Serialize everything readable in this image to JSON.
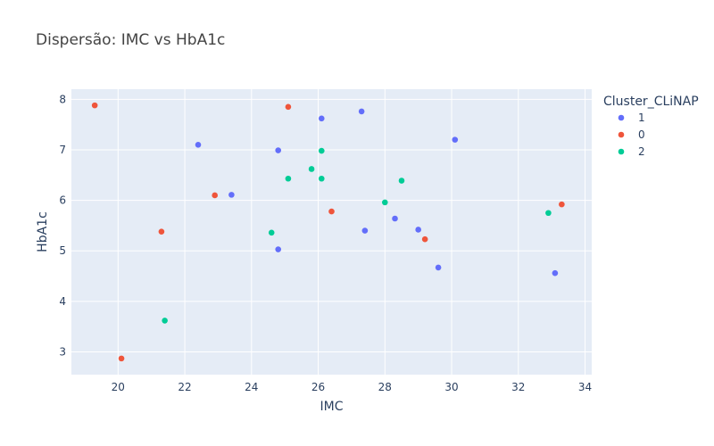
{
  "chart_data": {
    "type": "scatter",
    "title": "Dispersão: IMC vs HbA1c",
    "xlabel": "IMC",
    "ylabel": "HbA1c",
    "xlim": [
      18.6,
      34.2
    ],
    "ylim": [
      2.55,
      8.2
    ],
    "x_ticks": [
      20,
      22,
      24,
      26,
      28,
      30,
      32,
      34
    ],
    "y_ticks": [
      3,
      4,
      5,
      6,
      7,
      8
    ],
    "grid": true,
    "plot_background": "#E5ECF6",
    "legend": {
      "title": "Cluster_CLiNAP",
      "placement": "top-right"
    },
    "series": [
      {
        "name": "1",
        "color": "#636EFA",
        "points": [
          {
            "x": 22.4,
            "y": 7.1
          },
          {
            "x": 23.4,
            "y": 6.11
          },
          {
            "x": 24.8,
            "y": 6.99
          },
          {
            "x": 24.8,
            "y": 5.03
          },
          {
            "x": 26.1,
            "y": 7.62
          },
          {
            "x": 27.3,
            "y": 7.76
          },
          {
            "x": 27.4,
            "y": 5.4
          },
          {
            "x": 28.3,
            "y": 5.64
          },
          {
            "x": 29.0,
            "y": 5.42
          },
          {
            "x": 29.6,
            "y": 4.67
          },
          {
            "x": 30.1,
            "y": 7.2
          },
          {
            "x": 33.1,
            "y": 4.56
          }
        ]
      },
      {
        "name": "0",
        "color": "#EF553B",
        "points": [
          {
            "x": 19.3,
            "y": 7.88
          },
          {
            "x": 20.1,
            "y": 2.87
          },
          {
            "x": 21.3,
            "y": 5.38
          },
          {
            "x": 22.9,
            "y": 6.1
          },
          {
            "x": 25.1,
            "y": 7.85
          },
          {
            "x": 26.4,
            "y": 5.78
          },
          {
            "x": 29.2,
            "y": 5.23
          },
          {
            "x": 33.3,
            "y": 5.92
          }
        ]
      },
      {
        "name": "2",
        "color": "#00CC96",
        "points": [
          {
            "x": 21.4,
            "y": 3.62
          },
          {
            "x": 24.6,
            "y": 5.36
          },
          {
            "x": 25.1,
            "y": 6.43
          },
          {
            "x": 25.8,
            "y": 6.62
          },
          {
            "x": 26.1,
            "y": 6.98
          },
          {
            "x": 26.1,
            "y": 6.43
          },
          {
            "x": 28.0,
            "y": 5.96
          },
          {
            "x": 28.5,
            "y": 6.39
          },
          {
            "x": 32.9,
            "y": 5.75
          }
        ]
      }
    ]
  }
}
